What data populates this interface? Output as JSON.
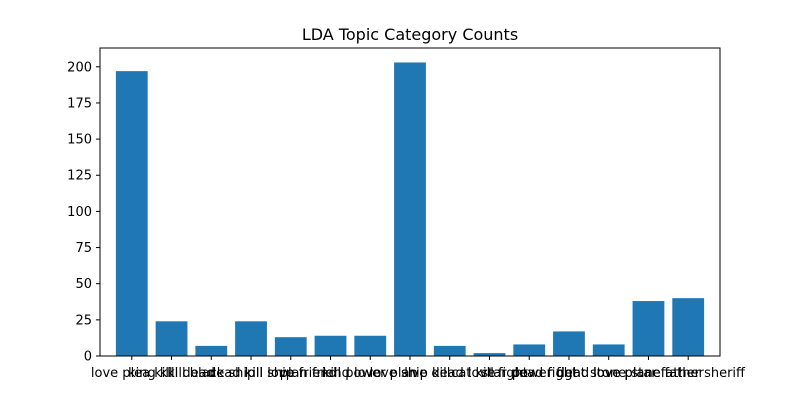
{
  "chart_data": {
    "type": "bar",
    "title": "LDA Topic Category Counts",
    "xlabel": "",
    "ylabel": "",
    "ylim": [
      0,
      213
    ],
    "y_ticks": [
      0,
      25,
      50,
      75,
      100,
      125,
      150,
      175,
      200
    ],
    "bar_color": "#1f77b4",
    "grid": false,
    "categories": [
      "love plea kill",
      "king kill dead",
      "kill black ship",
      "dead kill ship",
      "kill love friend",
      "plan friend love",
      "kill power plan",
      "love ship kill",
      "live dead love",
      "cat kill fight",
      "star dead fight",
      "power fight stone",
      "dead love plane",
      "love plane father",
      "star father sheriff"
    ],
    "values": [
      197,
      24,
      7,
      24,
      13,
      14,
      14,
      203,
      7,
      2,
      8,
      17,
      8,
      38,
      40
    ]
  }
}
